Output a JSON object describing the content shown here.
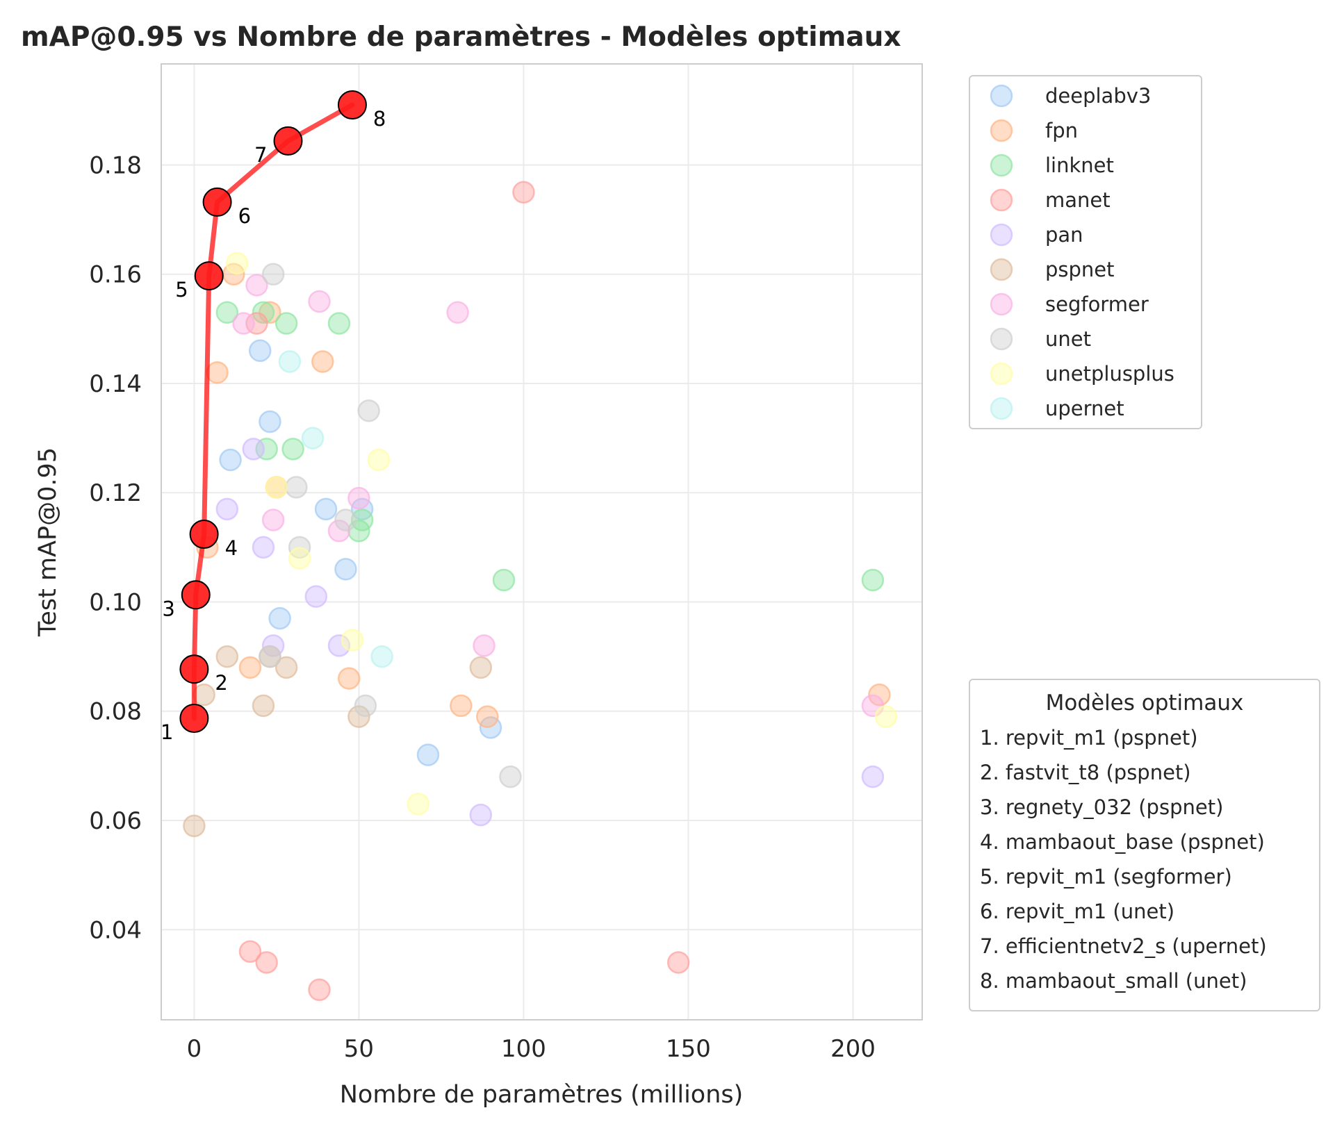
{
  "chart_data": {
    "type": "scatter",
    "title": "mAP@0.95 vs Nombre de paramètres - Modèles optimaux",
    "xlabel": "Nombre de paramètres (millions)",
    "ylabel": "Test mAP@0.95",
    "xlim": [
      -10,
      221
    ],
    "ylim": [
      0.0235,
      0.1985
    ],
    "xticks": [
      0,
      50,
      100,
      150,
      200
    ],
    "yticks": [
      0.04,
      0.06,
      0.08,
      0.1,
      0.12,
      0.14,
      0.16,
      0.18
    ],
    "xtick_labels": [
      "0",
      "50",
      "100",
      "150",
      "200"
    ],
    "ytick_labels": [
      "0.04",
      "0.06",
      "0.08",
      "0.10",
      "0.12",
      "0.14",
      "0.16",
      "0.18"
    ],
    "grid": true,
    "legend_position": "outside-right-top",
    "series": [
      {
        "name": "deeplabv3",
        "color": "#a1c9f4",
        "points": [
          [
            20,
            0.146
          ],
          [
            23,
            0.133
          ],
          [
            11,
            0.126
          ],
          [
            40,
            0.117
          ],
          [
            51,
            0.117
          ],
          [
            46,
            0.106
          ],
          [
            26,
            0.097
          ],
          [
            90,
            0.077
          ],
          [
            71,
            0.072
          ]
        ]
      },
      {
        "name": "fpn",
        "color": "#ffb482",
        "points": [
          [
            7,
            0.142
          ],
          [
            12,
            0.16
          ],
          [
            23,
            0.153
          ],
          [
            39,
            0.144
          ],
          [
            25,
            0.121
          ],
          [
            4,
            0.11
          ],
          [
            17,
            0.088
          ],
          [
            47,
            0.086
          ],
          [
            81,
            0.081
          ],
          [
            89,
            0.079
          ],
          [
            208,
            0.083
          ]
        ]
      },
      {
        "name": "linknet",
        "color": "#8de5a1",
        "points": [
          [
            10,
            0.153
          ],
          [
            21,
            0.153
          ],
          [
            28,
            0.151
          ],
          [
            44,
            0.151
          ],
          [
            22,
            0.128
          ],
          [
            30,
            0.128
          ],
          [
            51,
            0.115
          ],
          [
            50,
            0.113
          ],
          [
            94,
            0.104
          ],
          [
            206,
            0.104
          ]
        ]
      },
      {
        "name": "manet",
        "color": "#ff9f9b",
        "points": [
          [
            100,
            0.175
          ],
          [
            19,
            0.151
          ],
          [
            17,
            0.036
          ],
          [
            22,
            0.034
          ],
          [
            38,
            0.029
          ],
          [
            147,
            0.034
          ]
        ]
      },
      {
        "name": "pan",
        "color": "#d0bbff",
        "points": [
          [
            18,
            0.128
          ],
          [
            10,
            0.117
          ],
          [
            21,
            0.11
          ],
          [
            37,
            0.101
          ],
          [
            24,
            0.092
          ],
          [
            44,
            0.092
          ],
          [
            87,
            0.061
          ],
          [
            206,
            0.068
          ]
        ]
      },
      {
        "name": "pspnet",
        "color": "#debb9b",
        "points": [
          [
            10,
            0.09
          ],
          [
            23,
            0.09
          ],
          [
            28,
            0.088
          ],
          [
            21,
            0.081
          ],
          [
            3,
            0.083
          ],
          [
            0,
            0.059
          ],
          [
            50,
            0.079
          ],
          [
            87,
            0.088
          ]
        ]
      },
      {
        "name": "segformer",
        "color": "#fab0e4",
        "points": [
          [
            15,
            0.151
          ],
          [
            19,
            0.158
          ],
          [
            38,
            0.155
          ],
          [
            80,
            0.153
          ],
          [
            24,
            0.115
          ],
          [
            44,
            0.113
          ],
          [
            50,
            0.119
          ],
          [
            88,
            0.092
          ],
          [
            206,
            0.081
          ]
        ]
      },
      {
        "name": "unet",
        "color": "#cfcfcf",
        "points": [
          [
            24,
            0.16
          ],
          [
            53,
            0.135
          ],
          [
            31,
            0.121
          ],
          [
            32,
            0.11
          ],
          [
            46,
            0.115
          ],
          [
            23,
            0.09
          ],
          [
            52,
            0.081
          ],
          [
            96,
            0.068
          ]
        ]
      },
      {
        "name": "unetplusplus",
        "color": "#fffea3",
        "points": [
          [
            13,
            0.162
          ],
          [
            25,
            0.121
          ],
          [
            56,
            0.126
          ],
          [
            32,
            0.108
          ],
          [
            48,
            0.093
          ],
          [
            68,
            0.063
          ],
          [
            210,
            0.079
          ]
        ]
      },
      {
        "name": "upernet",
        "color": "#b9f2f0",
        "points": [
          [
            29,
            0.144
          ],
          [
            36,
            0.13
          ],
          [
            57,
            0.09
          ]
        ]
      }
    ],
    "optimal_path": {
      "color": "#ff0000",
      "points": [
        [
          0.0,
          0.0787
        ],
        [
          0.0,
          0.0877
        ],
        [
          0.5,
          0.1013
        ],
        [
          3.0,
          0.1124
        ],
        [
          4.5,
          0.1597
        ],
        [
          7.0,
          0.1732
        ],
        [
          28.5,
          0.1844
        ],
        [
          48.0,
          0.191
        ]
      ],
      "labels": [
        "1",
        "2",
        "3",
        "4",
        "5",
        "6",
        "7",
        "8"
      ],
      "label_sides": [
        "left",
        "right",
        "left",
        "right",
        "left",
        "right",
        "left",
        "right"
      ]
    },
    "optimal_legend": {
      "title": "Modèles optimaux",
      "entries": [
        "1. repvit_m1 (pspnet)",
        "2. fastvit_t8 (pspnet)",
        "3. regnety_032 (pspnet)",
        "4. mambaout_base (pspnet)",
        "5. repvit_m1 (segformer)",
        "6. repvit_m1 (unet)",
        "7. efficientnetv2_s (upernet)",
        "8. mambaout_small (unet)"
      ]
    }
  }
}
